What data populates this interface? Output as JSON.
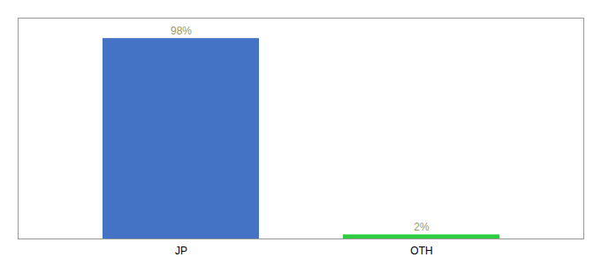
{
  "chart_data": {
    "type": "bar",
    "categories": [
      "JP",
      "OTH"
    ],
    "values": [
      98,
      2
    ],
    "value_labels": [
      "98%",
      "2%"
    ],
    "colors": [
      "#4472c4",
      "#2ecc40"
    ],
    "ylim": [
      0,
      108
    ],
    "data_labels": true,
    "tick_labels": "x",
    "grid": false
  }
}
